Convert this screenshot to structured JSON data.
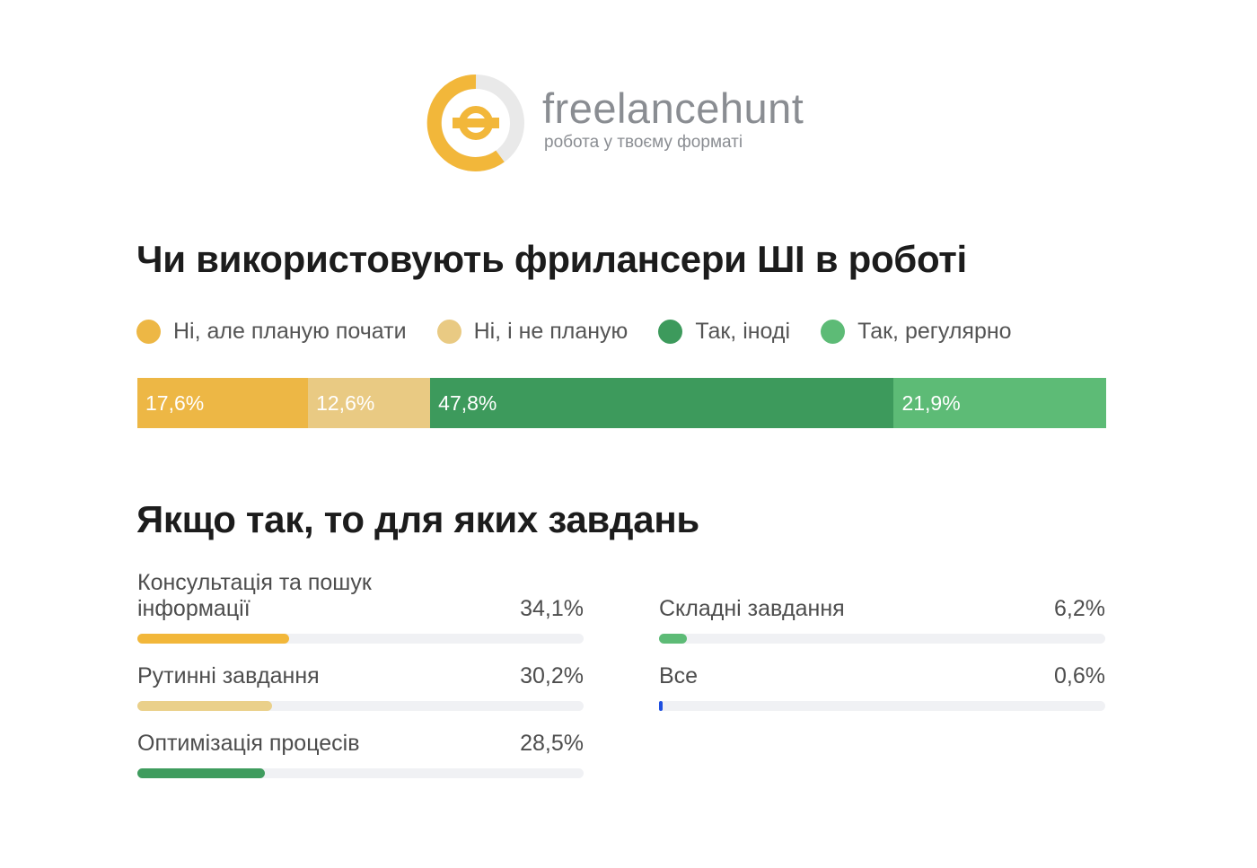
{
  "brand": {
    "name": "freelancehunt",
    "slogan": "робота у твоєму форматі",
    "colors": {
      "yellow": "#f2b73a",
      "grey": "#e6e6e6",
      "text": "#8a8d92"
    }
  },
  "sections": {
    "usage_title": "Чи використовують фрилансери ШІ в роботі",
    "tasks_title": "Якщо так, то для яких завдань"
  },
  "chart_data": [
    {
      "type": "bar",
      "stacked": true,
      "orientation": "horizontal",
      "title": "Чи використовують фрилансери ШІ в роботі",
      "legend_position": "top",
      "series": [
        {
          "name": "Ні, але планую почати",
          "value": 17.6,
          "label": "17,6%",
          "color": "#edb745"
        },
        {
          "name": "Ні, і не планую",
          "value": 12.6,
          "label": "12,6%",
          "color": "#e9ca83"
        },
        {
          "name": "Так, іноді",
          "value": 47.8,
          "label": "47,8%",
          "color": "#3d9a5c"
        },
        {
          "name": "Так, регулярно",
          "value": 21.9,
          "label": "21,9%",
          "color": "#5dbb76"
        }
      ]
    },
    {
      "type": "bar",
      "orientation": "horizontal",
      "title": "Якщо так, то для яких завдань",
      "xlim": [
        0,
        100
      ],
      "categories": [
        "Консультація та пошук інформації",
        "Рутинні завдання",
        "Оптимізація процесів",
        "Складні завдання",
        "Все"
      ],
      "values": [
        34.1,
        30.2,
        28.5,
        6.2,
        0.6
      ],
      "labels": [
        "34,1%",
        "30,2%",
        "28,5%",
        "6,2%",
        "0,6%"
      ],
      "colors": [
        "#f2b73a",
        "#ead08a",
        "#3f9c5e",
        "#5dbb76",
        "#1f4fe0"
      ],
      "track_color": "#f0f1f4"
    }
  ]
}
